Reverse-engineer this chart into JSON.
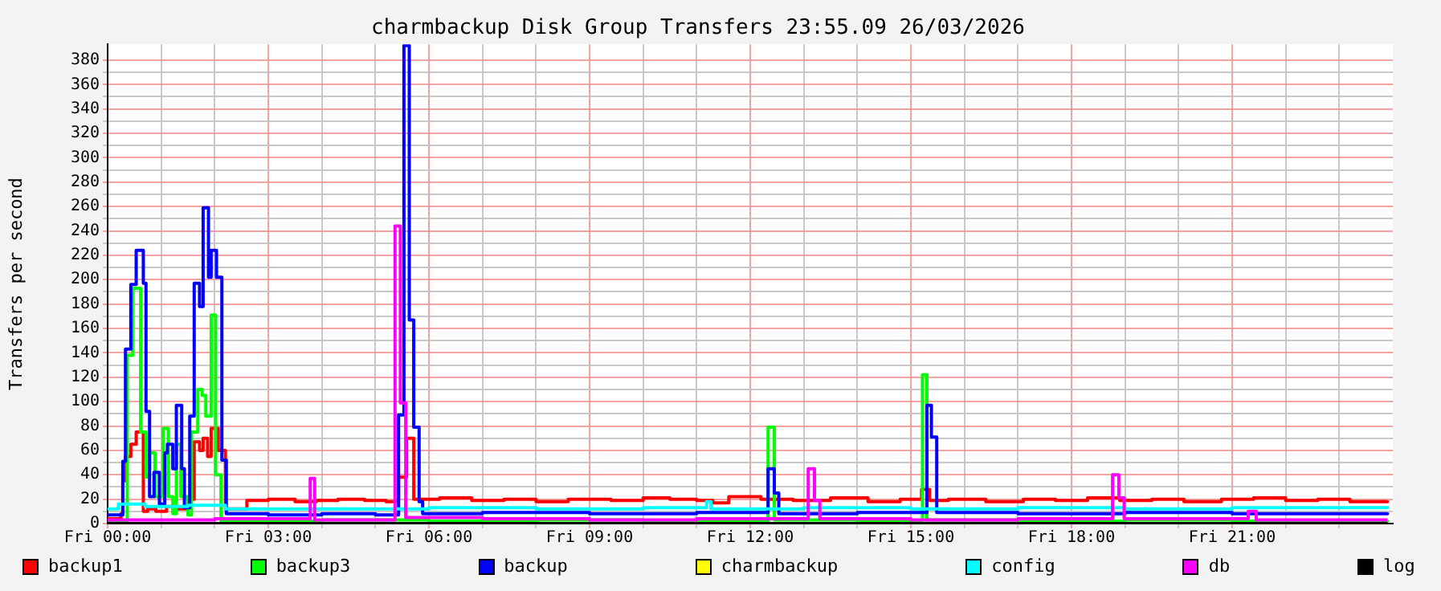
{
  "chart_data": {
    "type": "step",
    "title": "charmbackup Disk Group Transfers 23:55.09 26/03/2026",
    "ylabel": "Transfers per second",
    "xlim": [
      "2026-03-27T00:00",
      "2026-03-28T00:00"
    ],
    "ylim": [
      0,
      393
    ],
    "xticks": [
      {
        "value": "2026-03-27T00:00",
        "label": "Fri 00:00"
      },
      {
        "value": "2026-03-27T01:00",
        "label": null
      },
      {
        "value": "2026-03-27T02:00",
        "label": null
      },
      {
        "value": "2026-03-27T03:00",
        "label": "Fri 03:00"
      },
      {
        "value": "2026-03-27T04:00",
        "label": null
      },
      {
        "value": "2026-03-27T05:00",
        "label": null
      },
      {
        "value": "2026-03-27T06:00",
        "label": "Fri 06:00"
      },
      {
        "value": "2026-03-27T07:00",
        "label": null
      },
      {
        "value": "2026-03-27T08:00",
        "label": null
      },
      {
        "value": "2026-03-27T09:00",
        "label": "Fri 09:00"
      },
      {
        "value": "2026-03-27T10:00",
        "label": null
      },
      {
        "value": "2026-03-27T11:00",
        "label": null
      },
      {
        "value": "2026-03-27T12:00",
        "label": "Fri 12:00"
      },
      {
        "value": "2026-03-27T13:00",
        "label": null
      },
      {
        "value": "2026-03-27T14:00",
        "label": null
      },
      {
        "value": "2026-03-27T15:00",
        "label": "Fri 15:00"
      },
      {
        "value": "2026-03-27T16:00",
        "label": null
      },
      {
        "value": "2026-03-27T17:00",
        "label": null
      },
      {
        "value": "2026-03-27T18:00",
        "label": "Fri 18:00"
      },
      {
        "value": "2026-03-27T19:00",
        "label": null
      },
      {
        "value": "2026-03-27T20:00",
        "label": null
      },
      {
        "value": "2026-03-27T21:00",
        "label": "Fri 21:00"
      },
      {
        "value": "2026-03-27T22:00",
        "label": null
      },
      {
        "value": "2026-03-27T23:00",
        "label": null
      }
    ],
    "yticks": [
      0,
      {
        "value": 10,
        "label": null
      },
      20,
      {
        "value": 30,
        "label": null
      },
      40,
      {
        "value": 50,
        "label": null
      },
      60,
      {
        "value": 70,
        "label": null
      },
      80,
      {
        "value": 90,
        "label": null
      },
      100,
      {
        "value": 110,
        "label": null
      },
      120,
      {
        "value": 130,
        "label": null
      },
      140,
      {
        "value": 150,
        "label": null
      },
      160,
      {
        "value": 170,
        "label": null
      },
      180,
      {
        "value": 190,
        "label": null
      },
      200,
      {
        "value": 210,
        "label": null
      },
      220,
      {
        "value": 230,
        "label": null
      },
      240,
      {
        "value": 250,
        "label": null
      },
      260,
      {
        "value": 270,
        "label": null
      },
      280,
      {
        "value": 290,
        "label": null
      },
      300,
      {
        "value": 310,
        "label": null
      },
      320,
      {
        "value": 330,
        "label": null
      },
      340,
      {
        "value": 350,
        "label": null
      },
      360,
      {
        "value": 370,
        "label": null
      },
      380
    ],
    "grid": true,
    "legend": "bottom",
    "marker": "none",
    "line_style": "solid",
    "series": [
      {
        "name": "backup1",
        "color": "#ff0000",
        "x": [
          "2026-03-27T00:00",
          "2026-03-27T00:15",
          "2026-03-27T00:17",
          "2026-03-27T00:20",
          "2026-03-27T00:26",
          "2026-03-27T00:32",
          "2026-03-27T00:40",
          "2026-03-27T00:45",
          "2026-03-27T00:54",
          "2026-03-27T01:06",
          "2026-03-27T01:18",
          "2026-03-27T01:30",
          "2026-03-27T01:37",
          "2026-03-27T01:43",
          "2026-03-27T01:47",
          "2026-03-27T01:52",
          "2026-03-27T01:56",
          "2026-03-27T02:04",
          "2026-03-27T02:12",
          "2026-03-27T02:36",
          "2026-03-27T03:00",
          "2026-03-27T03:30",
          "2026-03-27T03:54",
          "2026-03-27T04:18",
          "2026-03-27T04:48",
          "2026-03-27T05:12",
          "2026-03-27T05:26",
          "2026-03-27T05:35",
          "2026-03-27T05:43",
          "2026-03-27T06:12",
          "2026-03-27T06:48",
          "2026-03-27T07:24",
          "2026-03-27T08:00",
          "2026-03-27T08:36",
          "2026-03-27T09:24",
          "2026-03-27T10:00",
          "2026-03-27T10:30",
          "2026-03-27T11:00",
          "2026-03-27T11:18",
          "2026-03-27T11:36",
          "2026-03-27T12:12",
          "2026-03-27T12:48",
          "2026-03-27T13:30",
          "2026-03-27T14:12",
          "2026-03-27T14:48",
          "2026-03-27T15:12",
          "2026-03-27T15:21",
          "2026-03-27T15:42",
          "2026-03-27T16:24",
          "2026-03-27T17:06",
          "2026-03-27T17:42",
          "2026-03-27T18:18",
          "2026-03-27T18:54",
          "2026-03-27T19:30",
          "2026-03-27T20:06",
          "2026-03-27T20:48",
          "2026-03-27T21:24",
          "2026-03-27T22:00",
          "2026-03-27T22:36",
          "2026-03-27T23:12",
          "2026-03-27T23:54"
        ],
        "values": [
          4,
          8,
          35,
          55,
          65,
          75,
          10,
          12,
          10,
          14,
          12,
          20,
          67,
          60,
          70,
          55,
          78,
          60,
          12,
          19,
          20,
          18,
          19,
          20,
          19,
          18,
          38,
          70,
          20,
          21,
          19,
          20,
          18,
          20,
          19,
          21,
          20,
          19,
          17,
          22,
          20,
          19,
          21,
          18,
          20,
          28,
          19,
          20,
          18,
          20,
          19,
          21,
          19,
          20,
          18,
          20,
          21,
          19,
          20,
          18,
          19
        ]
      },
      {
        "name": "backup3",
        "color": "#00ff00",
        "x": [
          "2026-03-27T00:00",
          "2026-03-27T00:20",
          "2026-03-27T00:22",
          "2026-03-27T00:28",
          "2026-03-27T00:37",
          "2026-03-27T00:43",
          "2026-03-27T00:47",
          "2026-03-27T00:53",
          "2026-03-27T01:02",
          "2026-03-27T01:08",
          "2026-03-27T01:13",
          "2026-03-27T01:17",
          "2026-03-27T01:22",
          "2026-03-27T01:30",
          "2026-03-27T01:34",
          "2026-03-27T01:41",
          "2026-03-27T01:46",
          "2026-03-27T01:50",
          "2026-03-27T01:56",
          "2026-03-27T02:01",
          "2026-03-27T02:07",
          "2026-03-27T04:00",
          "2026-03-27T06:00",
          "2026-03-27T08:00",
          "2026-03-27T10:00",
          "2026-03-27T12:20",
          "2026-03-27T12:27",
          "2026-03-27T14:00",
          "2026-03-27T15:13",
          "2026-03-27T15:18",
          "2026-03-27T17:00",
          "2026-03-27T19:00",
          "2026-03-27T21:00",
          "2026-03-27T23:54"
        ],
        "values": [
          2,
          2,
          138,
          193,
          75,
          38,
          58,
          22,
          78,
          22,
          8,
          65,
          22,
          7,
          75,
          110,
          105,
          88,
          171,
          40,
          2,
          3,
          2,
          3,
          2,
          79,
          3,
          2,
          122,
          3,
          2,
          3,
          2,
          3
        ]
      },
      {
        "name": "backup",
        "color": "#0000ff",
        "x": [
          "2026-03-27T00:00",
          "2026-03-27T00:17",
          "2026-03-27T00:20",
          "2026-03-27T00:26",
          "2026-03-27T00:32",
          "2026-03-27T00:40",
          "2026-03-27T00:43",
          "2026-03-27T00:47",
          "2026-03-27T00:52",
          "2026-03-27T00:58",
          "2026-03-27T01:04",
          "2026-03-27T01:07",
          "2026-03-27T01:13",
          "2026-03-27T01:17",
          "2026-03-27T01:23",
          "2026-03-27T01:26",
          "2026-03-27T01:32",
          "2026-03-27T01:37",
          "2026-03-27T01:43",
          "2026-03-27T01:47",
          "2026-03-27T01:53",
          "2026-03-27T01:56",
          "2026-03-27T02:02",
          "2026-03-27T02:08",
          "2026-03-27T02:13",
          "2026-03-27T03:00",
          "2026-03-27T04:00",
          "2026-03-27T05:00",
          "2026-03-27T05:26",
          "2026-03-27T05:32",
          "2026-03-27T05:38",
          "2026-03-27T05:43",
          "2026-03-27T05:49",
          "2026-03-27T05:53",
          "2026-03-27T07:00",
          "2026-03-27T09:00",
          "2026-03-27T11:00",
          "2026-03-27T12:20",
          "2026-03-27T12:27",
          "2026-03-27T12:32",
          "2026-03-27T14:00",
          "2026-03-27T15:18",
          "2026-03-27T15:23",
          "2026-03-27T15:29",
          "2026-03-27T17:00",
          "2026-03-27T19:00",
          "2026-03-27T21:00",
          "2026-03-27T23:54"
        ],
        "values": [
          7,
          51,
          143,
          196,
          224,
          197,
          92,
          22,
          42,
          16,
          58,
          65,
          45,
          97,
          45,
          13,
          88,
          197,
          178,
          259,
          202,
          224,
          202,
          52,
          8,
          7,
          8,
          7,
          89,
          392,
          167,
          79,
          18,
          8,
          9,
          8,
          9,
          45,
          25,
          8,
          9,
          97,
          71,
          9,
          8,
          9,
          8,
          9
        ]
      },
      {
        "name": "charmbackup",
        "color": "#ffff00"
      },
      {
        "name": "config",
        "color": "#00ffff",
        "x": [
          "2026-03-27T00:00",
          "2026-03-27T00:12",
          "2026-03-27T00:42",
          "2026-03-27T01:30",
          "2026-03-27T02:12",
          "2026-03-27T04:00",
          "2026-03-27T06:00",
          "2026-03-27T08:00",
          "2026-03-27T10:00",
          "2026-03-27T11:11",
          "2026-03-27T11:16",
          "2026-03-27T13:00",
          "2026-03-27T15:00",
          "2026-03-27T17:00",
          "2026-03-27T19:00",
          "2026-03-27T21:00",
          "2026-03-27T23:54"
        ],
        "values": [
          12,
          16,
          14,
          15,
          12,
          12,
          13,
          12,
          13,
          18,
          12,
          13,
          12,
          13,
          12,
          13,
          12
        ]
      },
      {
        "name": "db",
        "color": "#ff00ff",
        "x": [
          "2026-03-27T00:00",
          "2026-03-27T02:00",
          "2026-03-27T03:47",
          "2026-03-27T03:52",
          "2026-03-27T05:22",
          "2026-03-27T05:28",
          "2026-03-27T05:34",
          "2026-03-27T07:00",
          "2026-03-27T09:00",
          "2026-03-27T11:00",
          "2026-03-27T13:05",
          "2026-03-27T13:12",
          "2026-03-27T13:18",
          "2026-03-27T15:00",
          "2026-03-27T17:00",
          "2026-03-27T18:46",
          "2026-03-27T18:53",
          "2026-03-27T18:59",
          "2026-03-27T21:18",
          "2026-03-27T21:27",
          "2026-03-27T23:54"
        ],
        "values": [
          3,
          4,
          37,
          3,
          244,
          99,
          5,
          4,
          3,
          4,
          45,
          19,
          4,
          3,
          4,
          40,
          21,
          4,
          10,
          3,
          3
        ]
      },
      {
        "name": "log",
        "color": "#000000",
        "x": [
          "2026-03-27T00:00",
          "2026-03-27T23:54"
        ],
        "values": [
          0,
          0
        ]
      }
    ]
  }
}
